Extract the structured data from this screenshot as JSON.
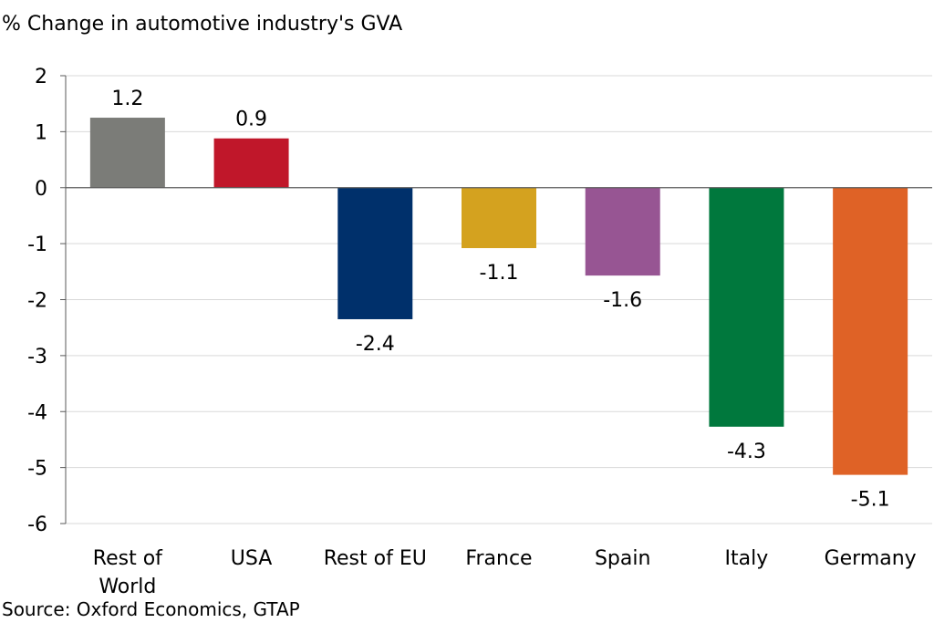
{
  "chart_data": {
    "type": "bar",
    "title": "",
    "ylabel": "% Change in automotive industry's GVA",
    "xlabel": "",
    "source": "Source: Oxford Economics, GTAP",
    "categories": [
      [
        "Rest of",
        "World"
      ],
      [
        "USA"
      ],
      [
        "Rest of EU"
      ],
      [
        "France"
      ],
      [
        "Spain"
      ],
      [
        "Italy"
      ],
      [
        "Germany"
      ]
    ],
    "values": [
      1.25,
      0.88,
      -2.35,
      -1.08,
      -1.57,
      -4.27,
      -5.13
    ],
    "data_labels": [
      "1.2",
      "0.9",
      "-2.4",
      "-1.1",
      "-1.6",
      "-4.3",
      "-5.1"
    ],
    "colors": [
      "#7b7c78",
      "#c0172a",
      "#00306b",
      "#d4a21f",
      "#975593",
      "#00783d",
      "#df6226"
    ],
    "ylim": [
      -6,
      2
    ],
    "yticks": [
      2,
      1,
      0,
      -1,
      -2,
      -3,
      -4,
      -5,
      -6
    ],
    "grid": true,
    "legend": "none"
  }
}
